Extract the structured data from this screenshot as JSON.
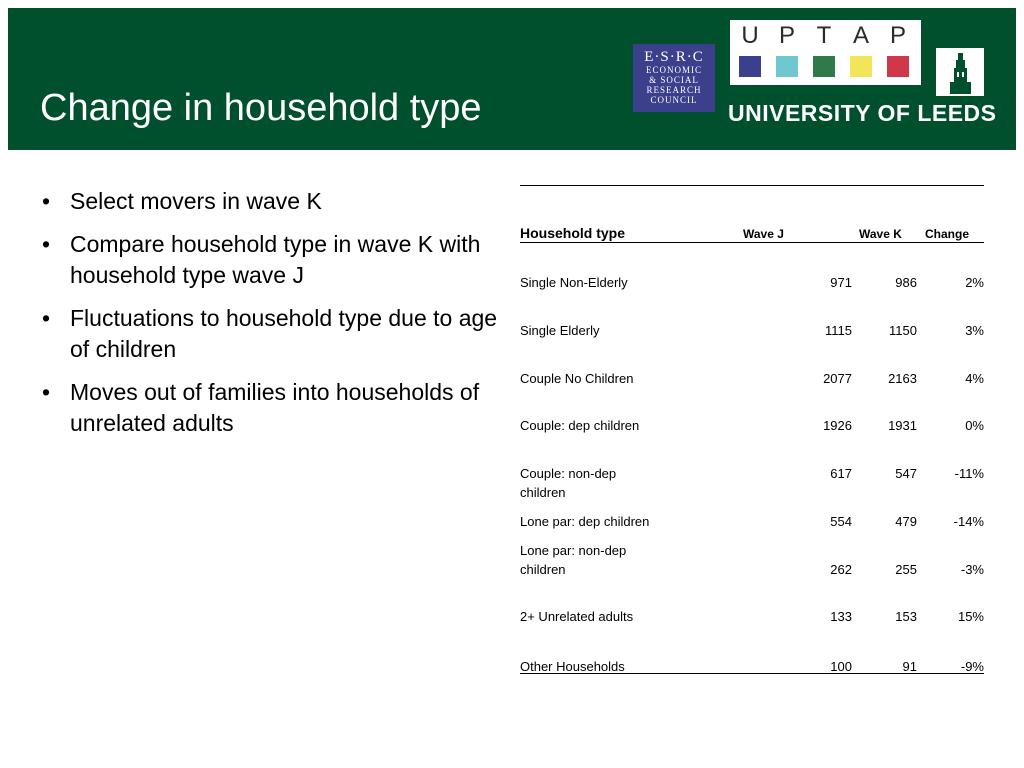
{
  "slide": {
    "title": "Change in household type"
  },
  "logos": {
    "esrc": {
      "top": "E·S·R·C",
      "lines": [
        "ECONOMIC",
        "& SOCIAL",
        "RESEARCH",
        "COUNCIL"
      ]
    },
    "uptap": {
      "letters": [
        "U",
        "P",
        "T",
        "A",
        "P"
      ],
      "colors": [
        "#3b3f8c",
        "#6fc8cf",
        "#2f7a48",
        "#f3e55a",
        "#d1374a"
      ]
    },
    "university": "UNIVERSITY OF LEEDS",
    "crest": "leeds-tower-crest-icon"
  },
  "bullets": [
    "Select movers in wave K",
    "Compare household type in wave K with household type wave J",
    "Fluctuations to household type due to age of children",
    "Moves out of families into households of unrelated adults"
  ],
  "table": {
    "headers": [
      "Household type",
      "Wave J",
      "Wave K",
      "Change"
    ],
    "rows": [
      {
        "type": "Single Non-Elderly",
        "wave_j": "971",
        "wave_k": "986",
        "change": "2%"
      },
      {
        "type": "Single Elderly",
        "wave_j": "1115",
        "wave_k": "1150",
        "change": "3%"
      },
      {
        "type": "Couple No Children",
        "wave_j": "2077",
        "wave_k": "2163",
        "change": "4%"
      },
      {
        "type": "Couple: dep children",
        "wave_j": "1926",
        "wave_k": "1931",
        "change": "0%"
      },
      {
        "type": "Couple: non-dep children",
        "wave_j": "617",
        "wave_k": "547",
        "change": "-11%"
      },
      {
        "type": "Lone par: dep children",
        "wave_j": "554",
        "wave_k": "479",
        "change": "-14%"
      },
      {
        "type": "Lone par: non-dep children",
        "wave_j": "262",
        "wave_k": "255",
        "change": "-3%"
      },
      {
        "type": "2+ Unrelated adults",
        "wave_j": "133",
        "wave_k": "153",
        "change": "15%"
      },
      {
        "type": "Other Households",
        "wave_j": "100",
        "wave_k": "91",
        "change": "-9%"
      }
    ]
  },
  "colors": {
    "header_bg": "#004f2d",
    "esrc_bg": "#3b3f8c"
  }
}
